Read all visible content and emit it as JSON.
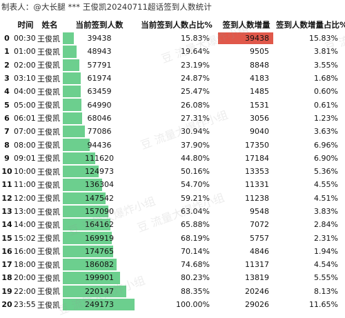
{
  "caption": "制表人：@大长腿 *** 王俊凯20240711超话签到人数统计",
  "headers": [
    "",
    "时间",
    "姓名",
    "当前签到人数",
    "当前签到人数占比%",
    "签到人数增量",
    "签到人数增量占比%"
  ],
  "max_count": 249173,
  "rows": [
    {
      "idx": "0",
      "time": "00:30",
      "name": "王俊凯",
      "count": 39438,
      "count_text": "39438",
      "pct": "15.83%",
      "inc": 39438,
      "inc_text": "39438",
      "incpct": "15.83%"
    },
    {
      "idx": "1",
      "time": "01:00",
      "name": "王俊凯",
      "count": 48943,
      "count_text": "48943",
      "pct": "19.64%",
      "inc": 9505,
      "inc_text": "9505",
      "incpct": "3.81%"
    },
    {
      "idx": "2",
      "time": "02:00",
      "name": "王俊凯",
      "count": 57791,
      "count_text": "57791",
      "pct": "23.19%",
      "inc": 8848,
      "inc_text": "8848",
      "incpct": "3.55%"
    },
    {
      "idx": "3",
      "time": "03:10",
      "name": "王俊凯",
      "count": 61974,
      "count_text": "61974",
      "pct": "24.87%",
      "inc": 4183,
      "inc_text": "4183",
      "incpct": "1.68%"
    },
    {
      "idx": "4",
      "time": "04:00",
      "name": "王俊凯",
      "count": 63459,
      "count_text": "63459",
      "pct": "25.47%",
      "inc": 1485,
      "inc_text": "1485",
      "incpct": "0.60%"
    },
    {
      "idx": "5",
      "time": "05:00",
      "name": "王俊凯",
      "count": 64990,
      "count_text": "64990",
      "pct": "26.08%",
      "inc": 1531,
      "inc_text": "1531",
      "incpct": "0.61%"
    },
    {
      "idx": "6",
      "time": "06:01",
      "name": "王俊凯",
      "count": 68046,
      "count_text": "68046",
      "pct": "27.31%",
      "inc": 3056,
      "inc_text": "3056",
      "incpct": "1.23%"
    },
    {
      "idx": "7",
      "time": "07:00",
      "name": "王俊凯",
      "count": 77086,
      "count_text": "77086",
      "pct": "30.94%",
      "inc": 9040,
      "inc_text": "9040",
      "incpct": "3.63%"
    },
    {
      "idx": "8",
      "time": "08:00",
      "name": "王俊凯",
      "count": 94436,
      "count_text": "94436",
      "pct": "37.90%",
      "inc": 17350,
      "inc_text": "17350",
      "incpct": "6.96%"
    },
    {
      "idx": "9",
      "time": "09:01",
      "name": "王俊凯",
      "count": 111620,
      "count_text": "111620",
      "pct": "44.80%",
      "inc": 17184,
      "inc_text": "17184",
      "incpct": "6.90%"
    },
    {
      "idx": "10",
      "time": "10:00",
      "name": "王俊凯",
      "count": 124973,
      "count_text": "124973",
      "pct": "50.16%",
      "inc": 13353,
      "inc_text": "13353",
      "incpct": "5.36%"
    },
    {
      "idx": "11",
      "time": "11:00",
      "name": "王俊凯",
      "count": 136304,
      "count_text": "136304",
      "pct": "54.70%",
      "inc": 11331,
      "inc_text": "11331",
      "incpct": "4.55%"
    },
    {
      "idx": "12",
      "time": "12:00",
      "name": "王俊凯",
      "count": 147542,
      "count_text": "147542",
      "pct": "59.21%",
      "inc": 11238,
      "inc_text": "11238",
      "incpct": "4.51%"
    },
    {
      "idx": "13",
      "time": "13:00",
      "name": "王俊凯",
      "count": 157090,
      "count_text": "157090",
      "pct": "63.04%",
      "inc": 9548,
      "inc_text": "9548",
      "incpct": "3.83%"
    },
    {
      "idx": "14",
      "time": "14:00",
      "name": "王俊凯",
      "count": 164162,
      "count_text": "164162",
      "pct": "65.88%",
      "inc": 7072,
      "inc_text": "7072",
      "incpct": "2.84%"
    },
    {
      "idx": "15",
      "time": "15:02",
      "name": "王俊凯",
      "count": 169919,
      "count_text": "169919",
      "pct": "68.19%",
      "inc": 5757,
      "inc_text": "5757",
      "incpct": "2.31%"
    },
    {
      "idx": "16",
      "time": "16:00",
      "name": "王俊凯",
      "count": 174765,
      "count_text": "174765",
      "pct": "70.14%",
      "inc": 4846,
      "inc_text": "4846",
      "incpct": "1.94%"
    },
    {
      "idx": "17",
      "time": "18:00",
      "name": "王俊凯",
      "count": 186082,
      "count_text": "186082",
      "pct": "74.68%",
      "inc": 11317,
      "inc_text": "11317",
      "incpct": "4.54%"
    },
    {
      "idx": "18",
      "time": "20:00",
      "name": "王俊凯",
      "count": 199901,
      "count_text": "199901",
      "pct": "80.23%",
      "inc": 13819,
      "inc_text": "13819",
      "incpct": "5.55%"
    },
    {
      "idx": "19",
      "time": "22:00",
      "name": "王俊凯",
      "count": 220147,
      "count_text": "220147",
      "pct": "88.35%",
      "inc": 20246,
      "inc_text": "20246",
      "incpct": "8.13%"
    },
    {
      "idx": "20",
      "time": "23:55",
      "name": "王俊凯",
      "count": 249173,
      "count_text": "249173",
      "pct": "100.00%",
      "inc": 29026,
      "inc_text": "29026",
      "incpct": "11.65%"
    }
  ],
  "watermarks": [
    "豆 流量大爆炸小组",
    "豆 流量大爆炸小组",
    "豆 流量大爆炸小组",
    "豆 流量大爆炸小组",
    "豆 流量大爆炸小组",
    "豆 流"
  ]
}
